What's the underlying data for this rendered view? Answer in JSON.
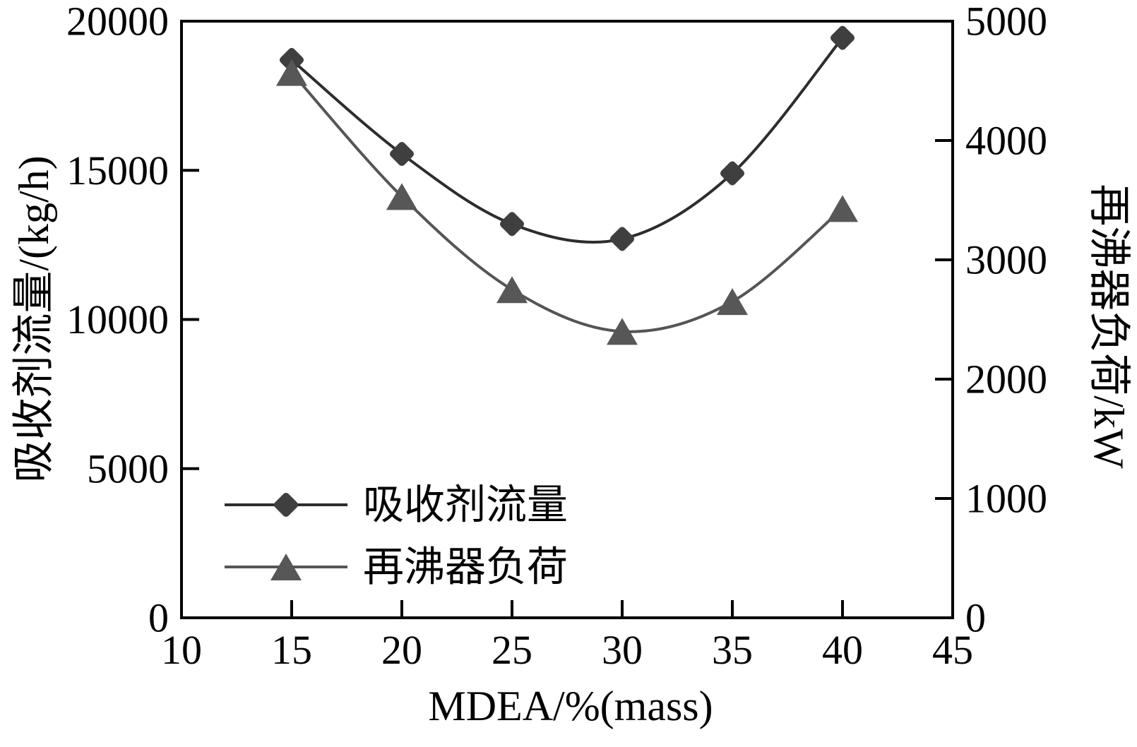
{
  "chart_data": {
    "type": "line",
    "title": "",
    "xlabel": "MDEA/%(mass)",
    "x": [
      15,
      20,
      25,
      30,
      35,
      40
    ],
    "xlim": [
      10,
      45
    ],
    "x_ticks": [
      10,
      15,
      20,
      25,
      30,
      35,
      40,
      45
    ],
    "left_axis": {
      "label": "吸收剂流量/(kg/h)",
      "lim": [
        0,
        20000
      ],
      "ticks": [
        0,
        5000,
        10000,
        15000,
        20000
      ]
    },
    "right_axis": {
      "label": "再沸器负荷/kW",
      "lim": [
        0,
        5000
      ],
      "ticks": [
        0,
        1000,
        2000,
        3000,
        4000,
        5000
      ]
    },
    "grid": false,
    "legend_position": "inside-lower-left",
    "series": [
      {
        "name": "吸收剂流量",
        "axis": "left",
        "marker": "diamond",
        "line_color": "#2d2d2d",
        "marker_color": "#3f3f3f",
        "values": [
          18700,
          15550,
          13200,
          12700,
          14900,
          19440
        ]
      },
      {
        "name": "再沸器负荷",
        "axis": "right",
        "marker": "triangle",
        "line_color": "#555555",
        "marker_color": "#575757",
        "values": [
          4570,
          3530,
          2750,
          2400,
          2650,
          3430
        ]
      }
    ],
    "frame_color": "#000000"
  }
}
